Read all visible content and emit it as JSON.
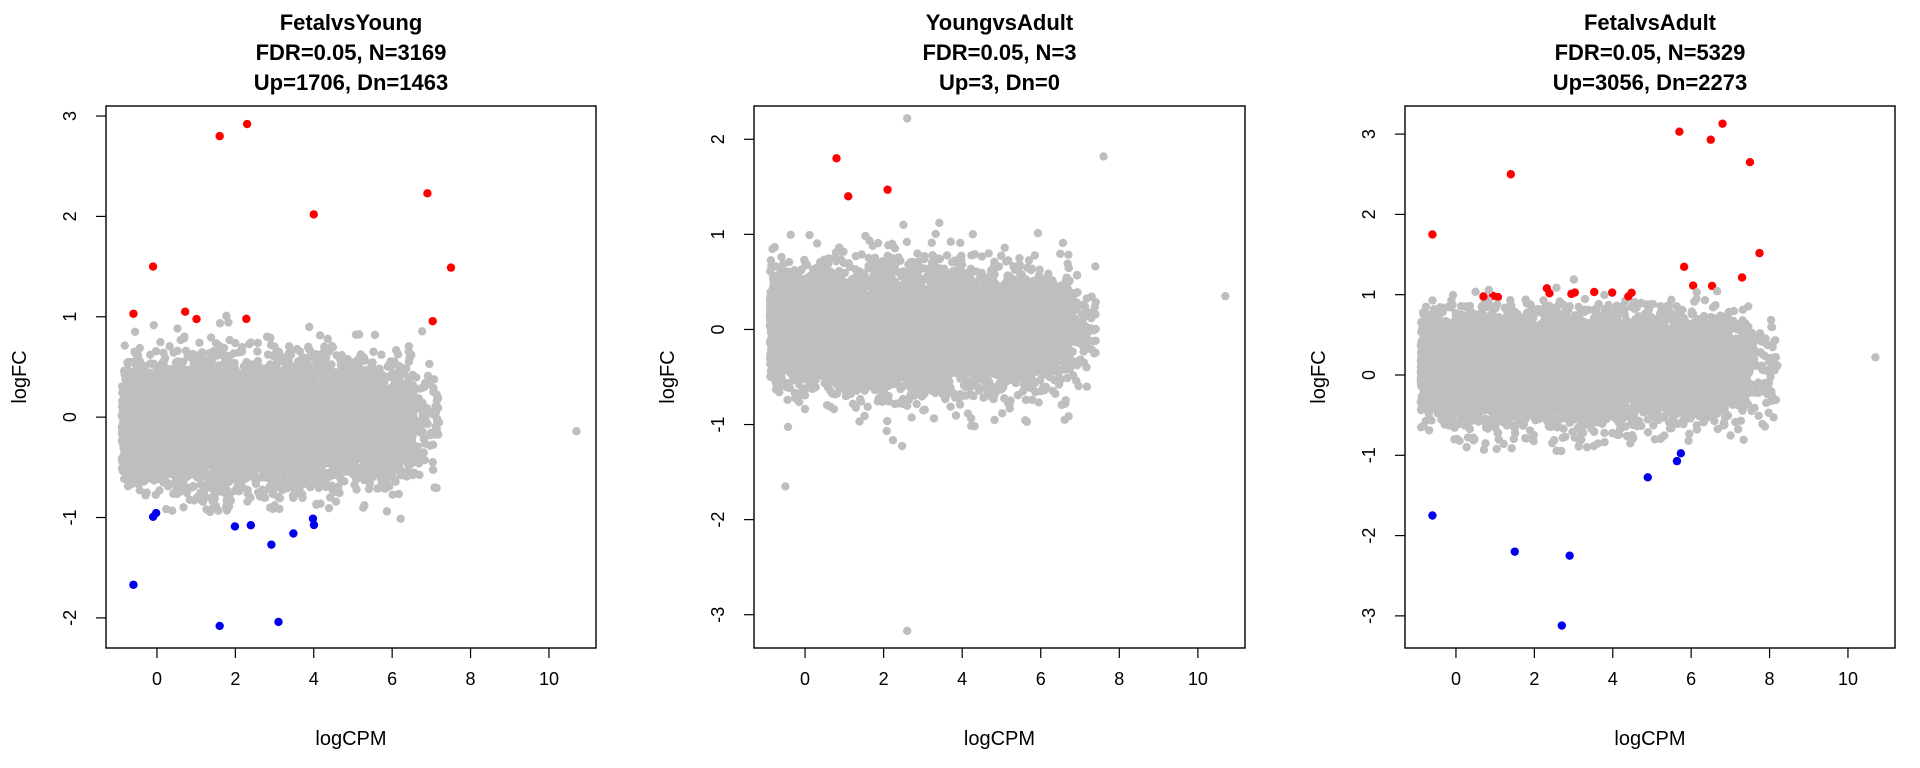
{
  "chart_data": [
    {
      "type": "scatter",
      "title_lines": [
        "FetalvsYoung",
        "FDR=0.05, N=3169",
        "Up=1706, Dn=1463"
      ],
      "xlabel": "logCPM",
      "ylabel": "logFC",
      "xlim": [
        -1.3,
        11.2
      ],
      "ylim": [
        -2.3,
        3.1
      ],
      "x_ticks": [
        0,
        2,
        4,
        6,
        8,
        10
      ],
      "y_ticks": [
        -2,
        -1,
        0,
        1,
        2,
        3
      ],
      "colors": {
        "up": "#ff0000",
        "down": "#0000ee",
        "ns": "#bebebe"
      },
      "grid": false,
      "legend": "none",
      "cloud": {
        "x_range": [
          -0.9,
          7.2
        ],
        "center_x": 2.8,
        "center_y": -0.05,
        "y_spread": 0.55,
        "n_points": 4500
      },
      "highlight_points": [
        {
          "x": 1.6,
          "y": 2.8,
          "group": "up"
        },
        {
          "x": 2.3,
          "y": 2.92,
          "group": "up"
        },
        {
          "x": 6.9,
          "y": 2.23,
          "group": "up"
        },
        {
          "x": 7.5,
          "y": 1.49,
          "group": "up"
        },
        {
          "x": 4.0,
          "y": 2.02,
          "group": "up"
        },
        {
          "x": -0.6,
          "y": 1.03,
          "group": "up"
        },
        {
          "x": -0.1,
          "y": 1.5,
          "group": "up"
        },
        {
          "x": 10.7,
          "y": -0.14,
          "group": "ns"
        },
        {
          "x": -0.6,
          "y": -1.67,
          "group": "down"
        },
        {
          "x": 1.6,
          "y": -2.08,
          "group": "down"
        },
        {
          "x": 3.1,
          "y": -2.04,
          "group": "down"
        }
      ]
    },
    {
      "type": "scatter",
      "title_lines": [
        "YoungvsAdult",
        "FDR=0.05, N=3",
        "Up=3, Dn=0"
      ],
      "xlabel": "logCPM",
      "ylabel": "logFC",
      "xlim": [
        -1.3,
        11.2
      ],
      "ylim": [
        -3.35,
        2.35
      ],
      "x_ticks": [
        0,
        2,
        4,
        6,
        8,
        10
      ],
      "y_ticks": [
        -3,
        -2,
        -1,
        0,
        1,
        2
      ],
      "colors": {
        "up": "#ff0000",
        "down": "#0000ee",
        "ns": "#bebebe"
      },
      "grid": false,
      "legend": "none",
      "cloud": {
        "x_range": [
          -0.9,
          7.4
        ],
        "center_x": 2.8,
        "center_y": 0.0,
        "y_spread": 0.55,
        "n_points": 4500
      },
      "highlight_points": [
        {
          "x": 2.6,
          "y": 2.22,
          "group": "ns"
        },
        {
          "x": 10.7,
          "y": 0.35,
          "group": "ns"
        },
        {
          "x": 2.6,
          "y": -3.17,
          "group": "ns"
        },
        {
          "x": 7.6,
          "y": 1.82,
          "group": "ns"
        },
        {
          "x": -0.5,
          "y": -1.65,
          "group": "ns"
        },
        {
          "x": 0.8,
          "y": 1.8,
          "group": "up"
        },
        {
          "x": 1.1,
          "y": 1.4,
          "group": "up"
        },
        {
          "x": 2.1,
          "y": 1.47,
          "group": "up"
        }
      ]
    },
    {
      "type": "scatter",
      "title_lines": [
        "FetalvsAdult",
        "FDR=0.05, N=5329",
        "Up=3056, Dn=2273"
      ],
      "xlabel": "logCPM",
      "ylabel": "logFC",
      "xlim": [
        -1.3,
        11.2
      ],
      "ylim": [
        -3.4,
        3.35
      ],
      "x_ticks": [
        0,
        2,
        4,
        6,
        8,
        10
      ],
      "y_ticks": [
        -3,
        -2,
        -1,
        0,
        1,
        2,
        3
      ],
      "colors": {
        "up": "#ff0000",
        "down": "#0000ee",
        "ns": "#bebebe"
      },
      "grid": false,
      "legend": "none",
      "cloud": {
        "x_range": [
          -0.9,
          8.2
        ],
        "center_x": 3.0,
        "center_y": 0.1,
        "y_spread": 0.6,
        "n_points": 4500
      },
      "highlight_points": [
        {
          "x": 5.7,
          "y": 3.03,
          "group": "up"
        },
        {
          "x": 6.8,
          "y": 3.13,
          "group": "up"
        },
        {
          "x": 6.5,
          "y": 2.93,
          "group": "up"
        },
        {
          "x": 7.5,
          "y": 2.65,
          "group": "up"
        },
        {
          "x": 1.4,
          "y": 2.5,
          "group": "up"
        },
        {
          "x": -0.6,
          "y": 1.75,
          "group": "up"
        },
        {
          "x": 10.7,
          "y": 0.22,
          "group": "ns"
        },
        {
          "x": -0.6,
          "y": -1.75,
          "group": "down"
        },
        {
          "x": 2.7,
          "y": -3.12,
          "group": "down"
        },
        {
          "x": 1.5,
          "y": -2.2,
          "group": "down"
        },
        {
          "x": 2.9,
          "y": -2.25,
          "group": "down"
        }
      ]
    }
  ]
}
